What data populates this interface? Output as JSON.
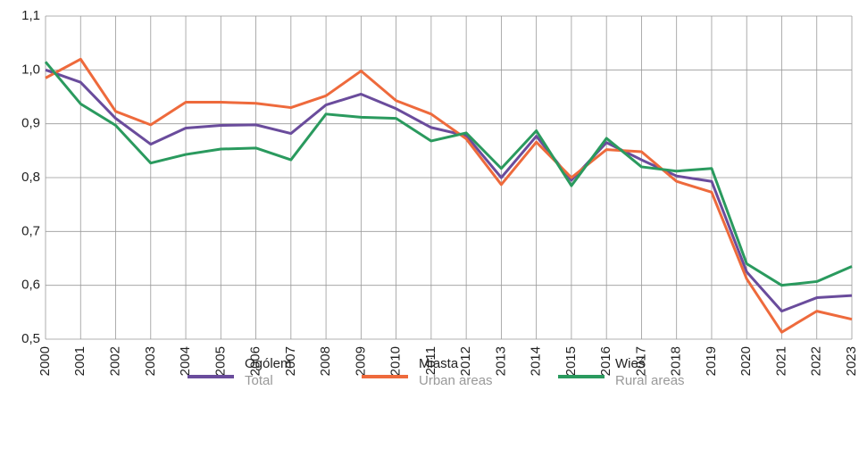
{
  "chart_data": {
    "type": "line",
    "categories": [
      "2000",
      "2001",
      "2002",
      "2003",
      "2004",
      "2005",
      "2006",
      "2007",
      "2008",
      "2009",
      "2010",
      "2011",
      "2012",
      "2013",
      "2014",
      "2015",
      "2016",
      "2017",
      "2018",
      "2019",
      "2020",
      "2021",
      "2022",
      "2023"
    ],
    "series": [
      {
        "name": "Ogólem",
        "subname": "Total",
        "color": "#6a4c9c",
        "values": [
          1.0,
          0.977,
          0.91,
          0.862,
          0.892,
          0.897,
          0.898,
          0.882,
          0.935,
          0.955,
          0.928,
          0.893,
          0.878,
          0.8,
          0.877,
          0.795,
          0.865,
          0.833,
          0.803,
          0.793,
          0.625,
          0.552,
          0.577,
          0.581
        ]
      },
      {
        "name": "Miasta",
        "subname": "Urban areas",
        "color": "#ee6a3c",
        "values": [
          0.985,
          1.02,
          0.923,
          0.898,
          0.94,
          0.94,
          0.938,
          0.93,
          0.952,
          0.998,
          0.943,
          0.918,
          0.872,
          0.787,
          0.866,
          0.8,
          0.852,
          0.848,
          0.793,
          0.773,
          0.612,
          0.513,
          0.552,
          0.537
        ]
      },
      {
        "name": "Wieś",
        "subname": "Rural areas",
        "color": "#2a9a5e",
        "values": [
          1.015,
          0.937,
          0.897,
          0.827,
          0.843,
          0.853,
          0.855,
          0.833,
          0.918,
          0.912,
          0.91,
          0.868,
          0.883,
          0.817,
          0.887,
          0.785,
          0.873,
          0.82,
          0.812,
          0.817,
          0.64,
          0.6,
          0.607,
          0.635
        ]
      }
    ],
    "ylim": [
      0.5,
      1.1
    ],
    "yticks": [
      {
        "value": 0.5,
        "label": "0,5"
      },
      {
        "value": 0.6,
        "label": "0,6"
      },
      {
        "value": 0.7,
        "label": "0,7"
      },
      {
        "value": 0.8,
        "label": "0,8"
      },
      {
        "value": 0.9,
        "label": "0,9"
      },
      {
        "value": 1.0,
        "label": "1,0"
      },
      {
        "value": 1.1,
        "label": "1,1"
      }
    ],
    "grid": true
  }
}
